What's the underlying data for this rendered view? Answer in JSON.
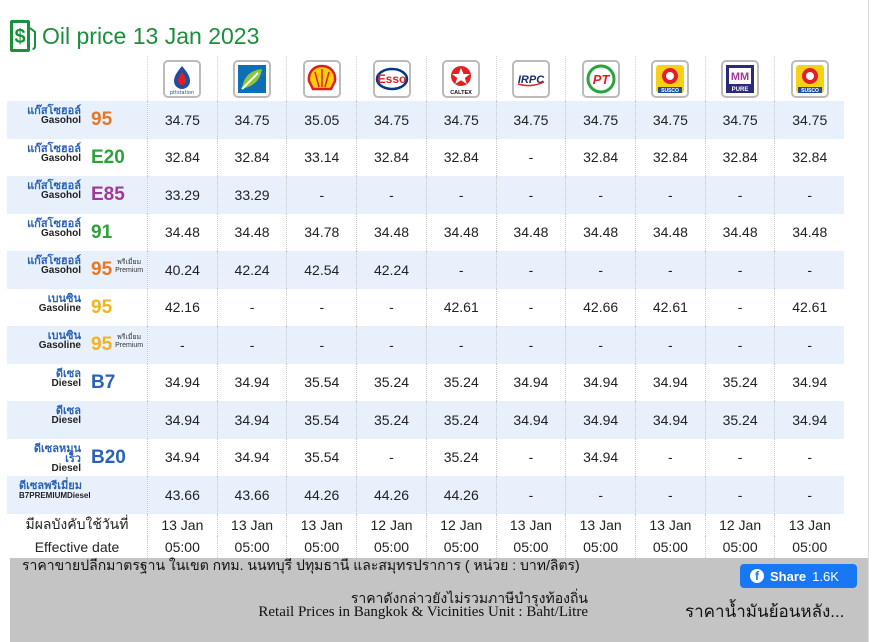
{
  "header": {
    "title": "Oil price 13 Jan 2023",
    "icon": "dollar-gas-pump-icon"
  },
  "brands": [
    {
      "name": "PTT Station",
      "icon": "ptt-logo-icon",
      "caption": "pttstation"
    },
    {
      "name": "Bangchak",
      "icon": "bangchak-logo-icon",
      "caption": ""
    },
    {
      "name": "Shell",
      "icon": "shell-logo-icon",
      "caption": ""
    },
    {
      "name": "Esso",
      "icon": "esso-logo-icon",
      "caption": "Esso"
    },
    {
      "name": "Caltex",
      "icon": "caltex-logo-icon",
      "caption": "CALTEX"
    },
    {
      "name": "IRPC",
      "icon": "irpc-logo-icon",
      "caption": "IRPC"
    },
    {
      "name": "PT",
      "icon": "pt-logo-icon",
      "caption": "PT"
    },
    {
      "name": "Susco",
      "icon": "susco-logo-icon",
      "caption": "SUSCO"
    },
    {
      "name": "Pure",
      "icon": "pure-logo-icon",
      "caption": "PURE"
    },
    {
      "name": "Susco Dealer",
      "icon": "susco-logo-icon",
      "caption": "SUSCO"
    }
  ],
  "products": [
    {
      "th": "แก๊สโซฮอล์",
      "en": "Gasohol",
      "code": "95",
      "sup": "",
      "code_color": "#e87722",
      "prices": [
        "34.75",
        "34.75",
        "35.05",
        "34.75",
        "34.75",
        "34.75",
        "34.75",
        "34.75",
        "34.75",
        "34.75"
      ]
    },
    {
      "th": "แก๊สโซฮอล์",
      "en": "Gasohol",
      "code": "E20",
      "sup": "",
      "code_color": "#2aa43a",
      "prices": [
        "32.84",
        "32.84",
        "33.14",
        "32.84",
        "32.84",
        "-",
        "32.84",
        "32.84",
        "32.84",
        "32.84"
      ]
    },
    {
      "th": "แก๊สโซฮอล์",
      "en": "Gasohol",
      "code": "E85",
      "sup": "",
      "code_color": "#a0399a",
      "prices": [
        "33.29",
        "33.29",
        "-",
        "-",
        "-",
        "-",
        "-",
        "-",
        "-",
        "-"
      ]
    },
    {
      "th": "แก๊สโซฮอล์",
      "en": "Gasohol",
      "code": "91",
      "sup": "",
      "code_color": "#2aa43a",
      "prices": [
        "34.48",
        "34.48",
        "34.78",
        "34.48",
        "34.48",
        "34.48",
        "34.48",
        "34.48",
        "34.48",
        "34.48"
      ]
    },
    {
      "th": "แก๊สโซฮอล์",
      "en": "Gasohol",
      "code": "95",
      "sup": "พรีเมี่ยม Premium",
      "code_color": "#e87722",
      "prices": [
        "40.24",
        "42.24",
        "42.54",
        "42.24",
        "-",
        "-",
        "-",
        "-",
        "-",
        "-"
      ]
    },
    {
      "th": "เบนซิน",
      "en": "Gasoline",
      "code": "95",
      "sup": "",
      "code_color": "#f2b41c",
      "prices": [
        "42.16",
        "-",
        "-",
        "-",
        "42.61",
        "-",
        "42.66",
        "42.61",
        "-",
        "42.61"
      ]
    },
    {
      "th": "เบนซิน",
      "en": "Gasoline",
      "code": "95",
      "sup": "พรีเมี่ยม Premium",
      "code_color": "#f2b41c",
      "prices": [
        "-",
        "-",
        "-",
        "-",
        "-",
        "-",
        "-",
        "-",
        "-",
        "-"
      ]
    },
    {
      "th": "ดีเซล",
      "en": "Diesel",
      "code": "B7",
      "sup": "",
      "code_color": "#2a62b8",
      "prices": [
        "34.94",
        "34.94",
        "35.54",
        "35.24",
        "35.24",
        "34.94",
        "34.94",
        "34.94",
        "35.24",
        "34.94"
      ]
    },
    {
      "th": "ดีเซล",
      "en": "Diesel",
      "code": "",
      "sup": "",
      "code_color": "#2a62b8",
      "prices": [
        "34.94",
        "34.94",
        "35.54",
        "35.24",
        "35.24",
        "34.94",
        "34.94",
        "34.94",
        "35.24",
        "34.94"
      ]
    },
    {
      "th": "ดีเซลหมุนเร็ว",
      "en": "Diesel",
      "code": "B20",
      "sup": "",
      "code_color": "#2a62b8",
      "prices": [
        "34.94",
        "34.94",
        "35.54",
        "-",
        "35.24",
        "-",
        "34.94",
        "-",
        "-",
        "-"
      ]
    },
    {
      "th": "ดีเซลพรีเมี่ยม",
      "en": "B7PREMIUMDiesel",
      "code": "",
      "sup": "",
      "code_color": "#2a62b8",
      "prices": [
        "43.66",
        "43.66",
        "44.26",
        "44.26",
        "44.26",
        "-",
        "-",
        "-",
        "-",
        "-"
      ]
    }
  ],
  "effective": {
    "label_th": "มีผลบังคับใช้วันที่",
    "label_en": "Effective date",
    "dates": [
      "13 Jan",
      "13 Jan",
      "13 Jan",
      "12 Jan",
      "12 Jan",
      "13 Jan",
      "13 Jan",
      "13 Jan",
      "12 Jan",
      "13 Jan"
    ],
    "times": [
      "05:00",
      "05:00",
      "05:00",
      "05:00",
      "05:00",
      "05:00",
      "05:00",
      "05:00",
      "05:00",
      "05:00"
    ]
  },
  "footer": {
    "line1": "ราคาขายปลีกมาตรฐาน ในเขต กทม. นนทบุรี ปทุมธานี และสมุทรปราการ ( หน่วย : บาท/ลิตร)",
    "line2": "ราคาดังกล่าวยังไม่รวมภาษีบำรุงท้องถิ่น",
    "line3": "Retail Prices in Bangkok & Vicinities Unit : Baht/Litre",
    "share_label": "Share",
    "share_count": "1.6K",
    "history_link": "ราคาน้ำมันย้อนหลัง..."
  },
  "colors": {
    "title_green": "#1a8f3c",
    "row_alt": "#e8f1fb",
    "footer_bg": "#c4c4c4",
    "facebook_blue": "#1877f2"
  }
}
